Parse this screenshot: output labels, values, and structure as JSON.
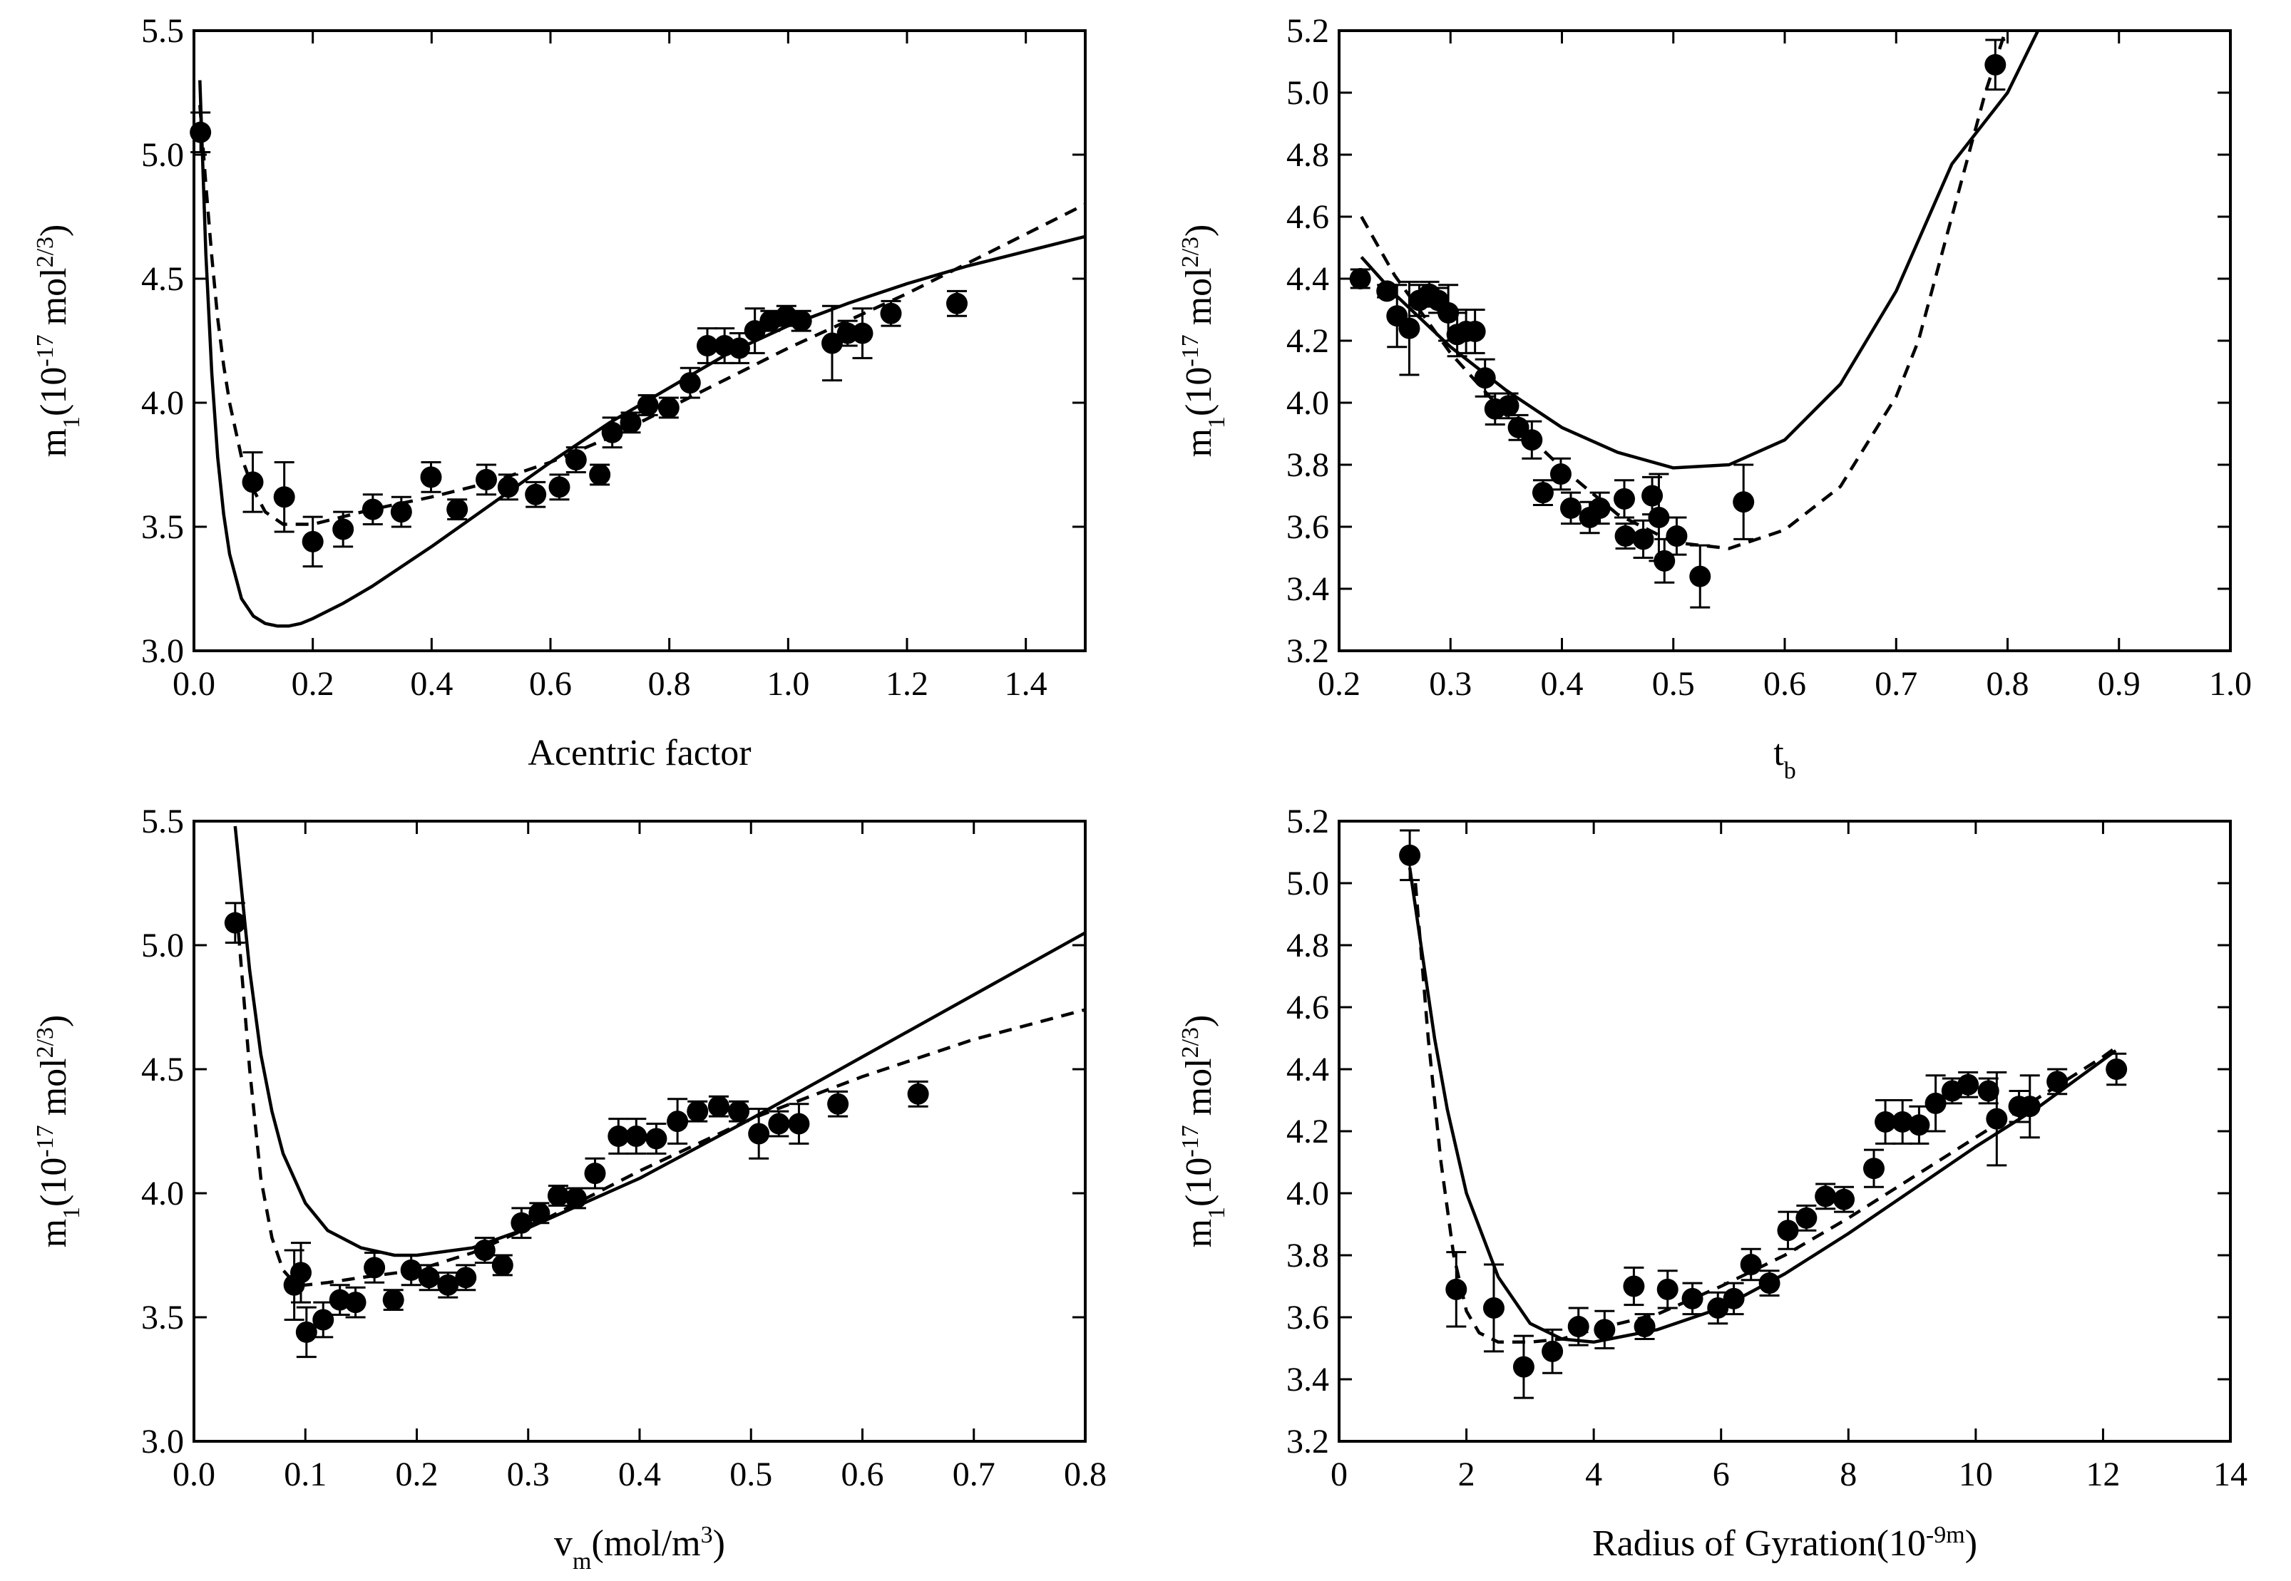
{
  "chart_data": [
    {
      "type": "scatter",
      "panel": "top-left",
      "xlabel": "Acentric factor",
      "ylabel": "m_1(10^-17 mol^2/3)",
      "xlim": [
        0,
        1.5
      ],
      "ylim": [
        3.0,
        5.5
      ],
      "xticks": [
        0.0,
        0.2,
        0.4,
        0.6,
        0.8,
        1.0,
        1.2,
        1.4
      ],
      "yticks": [
        3.0,
        3.5,
        4.0,
        4.5,
        5.0,
        5.5
      ],
      "xtick_decimals": 1,
      "ytick_decimals": 1,
      "points": [
        {
          "x": 0.011,
          "y": 5.09,
          "err": 0.08
        },
        {
          "x": 0.099,
          "y": 3.68,
          "err": 0.12
        },
        {
          "x": 0.152,
          "y": 3.62,
          "err": 0.14
        },
        {
          "x": 0.2,
          "y": 3.44,
          "err": 0.1
        },
        {
          "x": 0.251,
          "y": 3.49,
          "err": 0.07
        },
        {
          "x": 0.301,
          "y": 3.57,
          "err": 0.06
        },
        {
          "x": 0.349,
          "y": 3.56,
          "err": 0.06
        },
        {
          "x": 0.399,
          "y": 3.7,
          "err": 0.06
        },
        {
          "x": 0.443,
          "y": 3.57,
          "err": 0.04
        },
        {
          "x": 0.492,
          "y": 3.69,
          "err": 0.06
        },
        {
          "x": 0.529,
          "y": 3.66,
          "err": 0.05
        },
        {
          "x": 0.575,
          "y": 3.63,
          "err": 0.05
        },
        {
          "x": 0.615,
          "y": 3.66,
          "err": 0.05
        },
        {
          "x": 0.643,
          "y": 3.77,
          "err": 0.05
        },
        {
          "x": 0.683,
          "y": 3.71,
          "err": 0.04
        },
        {
          "x": 0.704,
          "y": 3.88,
          "err": 0.06
        },
        {
          "x": 0.735,
          "y": 3.92,
          "err": 0.04
        },
        {
          "x": 0.764,
          "y": 3.99,
          "err": 0.04
        },
        {
          "x": 0.799,
          "y": 3.98,
          "err": 0.04
        },
        {
          "x": 0.835,
          "y": 4.08,
          "err": 0.06
        },
        {
          "x": 0.864,
          "y": 4.23,
          "err": 0.07
        },
        {
          "x": 0.893,
          "y": 4.23,
          "err": 0.07
        },
        {
          "x": 0.918,
          "y": 4.22,
          "err": 0.06
        },
        {
          "x": 0.944,
          "y": 4.29,
          "err": 0.09
        },
        {
          "x": 0.97,
          "y": 4.33,
          "err": 0.04
        },
        {
          "x": 0.997,
          "y": 4.35,
          "err": 0.04
        },
        {
          "x": 1.022,
          "y": 4.33,
          "err": 0.04
        },
        {
          "x": 1.074,
          "y": 4.24,
          "err": 0.15
        },
        {
          "x": 1.1,
          "y": 4.28,
          "err": 0.05
        },
        {
          "x": 1.125,
          "y": 4.28,
          "err": 0.1
        },
        {
          "x": 1.173,
          "y": 4.36,
          "err": 0.05
        },
        {
          "x": 1.284,
          "y": 4.4,
          "err": 0.05
        }
      ],
      "series": [
        {
          "name": "solid",
          "style": "solid",
          "x": [
            0.01,
            0.02,
            0.03,
            0.04,
            0.05,
            0.06,
            0.08,
            0.1,
            0.12,
            0.14,
            0.16,
            0.18,
            0.2,
            0.25,
            0.3,
            0.4,
            0.5,
            0.6,
            0.7,
            0.8,
            0.9,
            1.0,
            1.1,
            1.2,
            1.3,
            1.4,
            1.5
          ],
          "values": [
            5.3,
            4.6,
            4.12,
            3.78,
            3.55,
            3.39,
            3.21,
            3.14,
            3.11,
            3.1,
            3.1,
            3.11,
            3.13,
            3.19,
            3.26,
            3.42,
            3.59,
            3.76,
            3.92,
            4.06,
            4.2,
            4.31,
            4.4,
            4.48,
            4.55,
            4.61,
            4.67
          ]
        },
        {
          "name": "dashed",
          "style": "dashed",
          "x": [
            0.01,
            0.02,
            0.03,
            0.04,
            0.05,
            0.06,
            0.08,
            0.1,
            0.12,
            0.15,
            0.2,
            0.25,
            0.3,
            0.4,
            0.5,
            0.6,
            0.7,
            0.8,
            0.9,
            1.0,
            1.1,
            1.2,
            1.3,
            1.4,
            1.5
          ],
          "values": [
            5.2,
            4.88,
            4.59,
            4.34,
            4.15,
            4.0,
            3.78,
            3.65,
            3.56,
            3.51,
            3.51,
            3.54,
            3.57,
            3.62,
            3.68,
            3.76,
            3.86,
            3.98,
            4.1,
            4.22,
            4.33,
            4.44,
            4.56,
            4.68,
            4.8
          ]
        }
      ]
    },
    {
      "type": "scatter",
      "panel": "top-right",
      "xlabel": "t_b",
      "ylabel": "m_1(10^-17 mol^2/3)",
      "xlim": [
        0.2,
        1.0
      ],
      "ylim": [
        3.2,
        5.2
      ],
      "xticks": [
        0.2,
        0.3,
        0.4,
        0.5,
        0.6,
        0.7,
        0.8,
        0.9,
        1.0
      ],
      "yticks": [
        3.2,
        3.4,
        3.6,
        3.8,
        4.0,
        4.2,
        4.4,
        4.6,
        4.8,
        5.0,
        5.2
      ],
      "xtick_decimals": 1,
      "ytick_decimals": 1,
      "points": [
        {
          "x": 0.219,
          "y": 4.4,
          "err": 0.03
        },
        {
          "x": 0.243,
          "y": 4.36,
          "err": 0.02
        },
        {
          "x": 0.252,
          "y": 4.28,
          "err": 0.1
        },
        {
          "x": 0.263,
          "y": 4.24,
          "err": 0.15
        },
        {
          "x": 0.272,
          "y": 4.33,
          "err": 0.05
        },
        {
          "x": 0.281,
          "y": 4.35,
          "err": 0.04
        },
        {
          "x": 0.289,
          "y": 4.33,
          "err": 0.04
        },
        {
          "x": 0.298,
          "y": 4.29,
          "err": 0.09
        },
        {
          "x": 0.306,
          "y": 4.22,
          "err": 0.07
        },
        {
          "x": 0.314,
          "y": 4.23,
          "err": 0.07
        },
        {
          "x": 0.322,
          "y": 4.23,
          "err": 0.07
        },
        {
          "x": 0.331,
          "y": 4.08,
          "err": 0.06
        },
        {
          "x": 0.34,
          "y": 3.98,
          "err": 0.05
        },
        {
          "x": 0.352,
          "y": 3.99,
          "err": 0.04
        },
        {
          "x": 0.361,
          "y": 3.92,
          "err": 0.04
        },
        {
          "x": 0.373,
          "y": 3.88,
          "err": 0.06
        },
        {
          "x": 0.383,
          "y": 3.71,
          "err": 0.04
        },
        {
          "x": 0.399,
          "y": 3.77,
          "err": 0.05
        },
        {
          "x": 0.408,
          "y": 3.66,
          "err": 0.05
        },
        {
          "x": 0.425,
          "y": 3.63,
          "err": 0.05
        },
        {
          "x": 0.434,
          "y": 3.66,
          "err": 0.05
        },
        {
          "x": 0.456,
          "y": 3.69,
          "err": 0.06
        },
        {
          "x": 0.457,
          "y": 3.57,
          "err": 0.04
        },
        {
          "x": 0.473,
          "y": 3.56,
          "err": 0.06
        },
        {
          "x": 0.481,
          "y": 3.7,
          "err": 0.06
        },
        {
          "x": 0.487,
          "y": 3.63,
          "err": 0.14
        },
        {
          "x": 0.492,
          "y": 3.49,
          "err": 0.07
        },
        {
          "x": 0.503,
          "y": 3.57,
          "err": 0.06
        },
        {
          "x": 0.524,
          "y": 3.44,
          "err": 0.1
        },
        {
          "x": 0.563,
          "y": 3.68,
          "err": 0.12
        },
        {
          "x": 0.789,
          "y": 5.09,
          "err": 0.08
        }
      ],
      "series": [
        {
          "name": "solid",
          "style": "solid",
          "x": [
            0.22,
            0.25,
            0.3,
            0.35,
            0.4,
            0.45,
            0.5,
            0.55,
            0.6,
            0.65,
            0.7,
            0.75,
            0.8,
            0.83
          ],
          "values": [
            4.47,
            4.35,
            4.18,
            4.04,
            3.92,
            3.84,
            3.79,
            3.8,
            3.88,
            4.06,
            4.36,
            4.77,
            5.0,
            5.22
          ]
        },
        {
          "name": "dashed",
          "style": "dashed",
          "x": [
            0.22,
            0.25,
            0.3,
            0.35,
            0.4,
            0.45,
            0.5,
            0.55,
            0.6,
            0.65,
            0.7,
            0.72,
            0.75,
            0.78,
            0.8
          ],
          "values": [
            4.6,
            4.41,
            4.16,
            3.96,
            3.79,
            3.64,
            3.55,
            3.53,
            3.59,
            3.73,
            4.02,
            4.2,
            4.6,
            5.0,
            5.22
          ]
        }
      ]
    },
    {
      "type": "scatter",
      "panel": "bottom-left",
      "xlabel": "v_m(mol/m^3)",
      "ylabel": "m_1(10^-17 mol^2/3)",
      "xlim": [
        0.0,
        0.8
      ],
      "ylim": [
        3.0,
        5.5
      ],
      "xticks": [
        0.0,
        0.1,
        0.2,
        0.3,
        0.4,
        0.5,
        0.6,
        0.7,
        0.8
      ],
      "yticks": [
        3.0,
        3.5,
        4.0,
        4.5,
        5.0,
        5.5
      ],
      "xtick_decimals": 1,
      "ytick_decimals": 1,
      "points": [
        {
          "x": 0.037,
          "y": 5.09,
          "err": 0.08
        },
        {
          "x": 0.09,
          "y": 3.63,
          "err": 0.14
        },
        {
          "x": 0.096,
          "y": 3.68,
          "err": 0.12
        },
        {
          "x": 0.101,
          "y": 3.44,
          "err": 0.1
        },
        {
          "x": 0.116,
          "y": 3.49,
          "err": 0.07
        },
        {
          "x": 0.131,
          "y": 3.57,
          "err": 0.06
        },
        {
          "x": 0.145,
          "y": 3.56,
          "err": 0.06
        },
        {
          "x": 0.162,
          "y": 3.7,
          "err": 0.06
        },
        {
          "x": 0.179,
          "y": 3.57,
          "err": 0.04
        },
        {
          "x": 0.195,
          "y": 3.69,
          "err": 0.06
        },
        {
          "x": 0.211,
          "y": 3.66,
          "err": 0.05
        },
        {
          "x": 0.228,
          "y": 3.63,
          "err": 0.05
        },
        {
          "x": 0.244,
          "y": 3.66,
          "err": 0.05
        },
        {
          "x": 0.261,
          "y": 3.77,
          "err": 0.05
        },
        {
          "x": 0.277,
          "y": 3.71,
          "err": 0.04
        },
        {
          "x": 0.294,
          "y": 3.88,
          "err": 0.06
        },
        {
          "x": 0.31,
          "y": 3.92,
          "err": 0.04
        },
        {
          "x": 0.327,
          "y": 3.99,
          "err": 0.04
        },
        {
          "x": 0.343,
          "y": 3.98,
          "err": 0.04
        },
        {
          "x": 0.36,
          "y": 4.08,
          "err": 0.06
        },
        {
          "x": 0.381,
          "y": 4.23,
          "err": 0.07
        },
        {
          "x": 0.397,
          "y": 4.23,
          "err": 0.07
        },
        {
          "x": 0.415,
          "y": 4.22,
          "err": 0.06
        },
        {
          "x": 0.434,
          "y": 4.29,
          "err": 0.09
        },
        {
          "x": 0.452,
          "y": 4.33,
          "err": 0.04
        },
        {
          "x": 0.471,
          "y": 4.35,
          "err": 0.04
        },
        {
          "x": 0.489,
          "y": 4.33,
          "err": 0.04
        },
        {
          "x": 0.507,
          "y": 4.24,
          "err": 0.1
        },
        {
          "x": 0.525,
          "y": 4.28,
          "err": 0.05
        },
        {
          "x": 0.543,
          "y": 4.28,
          "err": 0.08
        },
        {
          "x": 0.578,
          "y": 4.36,
          "err": 0.05
        },
        {
          "x": 0.65,
          "y": 4.4,
          "err": 0.05
        }
      ],
      "series": [
        {
          "name": "solid",
          "style": "solid",
          "x": [
            0.037,
            0.05,
            0.06,
            0.07,
            0.08,
            0.1,
            0.12,
            0.15,
            0.18,
            0.2,
            0.25,
            0.3,
            0.4,
            0.5,
            0.6,
            0.7,
            0.8
          ],
          "values": [
            5.48,
            4.9,
            4.56,
            4.33,
            4.16,
            3.96,
            3.85,
            3.78,
            3.75,
            3.75,
            3.78,
            3.86,
            4.06,
            4.3,
            4.55,
            4.8,
            5.05
          ]
        },
        {
          "name": "dashed",
          "style": "dashed",
          "x": [
            0.04,
            0.05,
            0.06,
            0.07,
            0.08,
            0.09,
            0.1,
            0.12,
            0.15,
            0.2,
            0.25,
            0.3,
            0.4,
            0.5,
            0.6,
            0.7,
            0.8
          ],
          "values": [
            5.05,
            4.5,
            4.06,
            3.82,
            3.69,
            3.64,
            3.63,
            3.64,
            3.66,
            3.69,
            3.76,
            3.86,
            4.09,
            4.3,
            4.47,
            4.62,
            4.74
          ]
        }
      ]
    },
    {
      "type": "scatter",
      "panel": "bottom-right",
      "xlabel": "Radius of Gyration(10^-9m)",
      "ylabel": "m_1(10^-17 mol^2/3)",
      "xlim": [
        0,
        14
      ],
      "ylim": [
        3.2,
        5.2
      ],
      "xticks": [
        0,
        2,
        4,
        6,
        8,
        10,
        12,
        14
      ],
      "yticks": [
        3.2,
        3.4,
        3.6,
        3.8,
        4.0,
        4.2,
        4.4,
        4.6,
        4.8,
        5.0,
        5.2
      ],
      "xtick_decimals": 0,
      "ytick_decimals": 1,
      "points": [
        {
          "x": 1.11,
          "y": 5.09,
          "err": 0.08
        },
        {
          "x": 1.84,
          "y": 3.69,
          "err": 0.12
        },
        {
          "x": 2.43,
          "y": 3.63,
          "err": 0.14
        },
        {
          "x": 2.9,
          "y": 3.44,
          "err": 0.1
        },
        {
          "x": 3.35,
          "y": 3.49,
          "err": 0.07
        },
        {
          "x": 3.76,
          "y": 3.57,
          "err": 0.06
        },
        {
          "x": 4.17,
          "y": 3.56,
          "err": 0.06
        },
        {
          "x": 4.63,
          "y": 3.7,
          "err": 0.06
        },
        {
          "x": 4.8,
          "y": 3.57,
          "err": 0.04
        },
        {
          "x": 5.16,
          "y": 3.69,
          "err": 0.06
        },
        {
          "x": 5.55,
          "y": 3.66,
          "err": 0.05
        },
        {
          "x": 5.95,
          "y": 3.63,
          "err": 0.05
        },
        {
          "x": 6.2,
          "y": 3.66,
          "err": 0.05
        },
        {
          "x": 6.47,
          "y": 3.77,
          "err": 0.05
        },
        {
          "x": 6.76,
          "y": 3.71,
          "err": 0.04
        },
        {
          "x": 7.05,
          "y": 3.88,
          "err": 0.06
        },
        {
          "x": 7.34,
          "y": 3.92,
          "err": 0.04
        },
        {
          "x": 7.64,
          "y": 3.99,
          "err": 0.04
        },
        {
          "x": 7.93,
          "y": 3.98,
          "err": 0.04
        },
        {
          "x": 8.4,
          "y": 4.08,
          "err": 0.06
        },
        {
          "x": 8.58,
          "y": 4.23,
          "err": 0.07
        },
        {
          "x": 8.85,
          "y": 4.23,
          "err": 0.07
        },
        {
          "x": 9.11,
          "y": 4.22,
          "err": 0.06
        },
        {
          "x": 9.37,
          "y": 4.29,
          "err": 0.09
        },
        {
          "x": 9.63,
          "y": 4.33,
          "err": 0.04
        },
        {
          "x": 9.88,
          "y": 4.35,
          "err": 0.04
        },
        {
          "x": 10.2,
          "y": 4.33,
          "err": 0.04
        },
        {
          "x": 10.33,
          "y": 4.24,
          "err": 0.15
        },
        {
          "x": 10.68,
          "y": 4.28,
          "err": 0.05
        },
        {
          "x": 10.85,
          "y": 4.28,
          "err": 0.1
        },
        {
          "x": 11.28,
          "y": 4.36,
          "err": 0.04
        },
        {
          "x": 12.21,
          "y": 4.4,
          "err": 0.05
        }
      ],
      "series": [
        {
          "name": "solid",
          "style": "solid",
          "x": [
            1.11,
            1.3,
            1.5,
            1.7,
            2.0,
            2.5,
            3.0,
            3.5,
            4.0,
            5.0,
            6.0,
            7.0,
            8.0,
            9.0,
            10.0,
            11.0,
            12.0,
            12.2
          ],
          "values": [
            5.05,
            4.78,
            4.5,
            4.27,
            4.0,
            3.73,
            3.58,
            3.53,
            3.52,
            3.56,
            3.63,
            3.74,
            3.87,
            4.01,
            4.15,
            4.28,
            4.43,
            4.46
          ]
        },
        {
          "name": "dashed",
          "style": "dashed",
          "x": [
            1.2,
            1.4,
            1.6,
            1.8,
            2.0,
            2.2,
            2.5,
            3.0,
            3.5,
            4.0,
            5.0,
            6.0,
            7.0,
            8.0,
            9.0,
            10.0,
            11.0,
            12.0,
            12.2
          ],
          "values": [
            5.0,
            4.5,
            4.1,
            3.8,
            3.62,
            3.55,
            3.52,
            3.52,
            3.53,
            3.56,
            3.61,
            3.7,
            3.8,
            3.92,
            4.05,
            4.18,
            4.31,
            4.44,
            4.47
          ]
        }
      ]
    }
  ]
}
